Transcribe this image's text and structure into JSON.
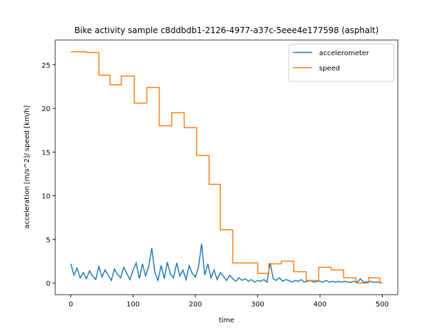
{
  "chart_data": {
    "type": "line",
    "title": "Bike activity sample c8ddbdb1-2126-4977-a37c-5eee4e177598 (asphalt)",
    "x_label": "time",
    "y_label": "acceleration [m/s^2]/ speed [km/h]",
    "xlim": [
      -25,
      525
    ],
    "ylim": [
      -1.33,
      27.83
    ],
    "xticks": [
      0,
      100,
      200,
      300,
      400,
      500
    ],
    "yticks": [
      0,
      5,
      10,
      15,
      20,
      25
    ],
    "legend": "upper right",
    "series": [
      {
        "name": "accelerometer",
        "color": "#1f77b4",
        "x": [
          0,
          5,
          10,
          15,
          20,
          25,
          30,
          35,
          40,
          45,
          50,
          55,
          60,
          65,
          70,
          75,
          80,
          85,
          90,
          95,
          100,
          105,
          110,
          115,
          120,
          125,
          130,
          135,
          140,
          145,
          150,
          155,
          160,
          165,
          170,
          175,
          180,
          185,
          190,
          195,
          200,
          205,
          210,
          215,
          220,
          225,
          230,
          235,
          240,
          245,
          250,
          255,
          260,
          265,
          270,
          275,
          280,
          285,
          290,
          295,
          300,
          305,
          310,
          315,
          320,
          325,
          330,
          335,
          340,
          345,
          350,
          355,
          360,
          365,
          370,
          375,
          380,
          385,
          390,
          395,
          400,
          405,
          410,
          415,
          420,
          425,
          430,
          435,
          440,
          445,
          450,
          455,
          460,
          465,
          470,
          475,
          480,
          485,
          490,
          495,
          500
        ],
        "values": [
          2.2,
          0.9,
          1.7,
          0.6,
          1.2,
          0.5,
          1.4,
          0.8,
          0.4,
          1.9,
          0.7,
          1.5,
          0.9,
          0.3,
          1.6,
          1.0,
          0.6,
          1.8,
          1.1,
          0.4,
          1.5,
          2.3,
          0.5,
          2.2,
          0.8,
          1.9,
          4.0,
          1.2,
          0.3,
          2.0,
          0.5,
          2.4,
          1.0,
          0.6,
          2.3,
          0.8,
          1.5,
          0.4,
          2.0,
          1.1,
          0.7,
          1.8,
          4.5,
          0.9,
          2.2,
          0.6,
          1.5,
          0.4,
          1.2,
          0.8,
          0.3,
          0.9,
          0.5,
          0.2,
          0.6,
          0.3,
          0.5,
          0.2,
          0.4,
          0.1,
          0.3,
          0.2,
          0.4,
          0.1,
          2.3,
          0.5,
          0.3,
          0.6,
          0.2,
          0.4,
          0.3,
          0.1,
          0.3,
          0.2,
          0.4,
          0.1,
          0.2,
          0.3,
          0.1,
          0.2,
          0.2,
          0.1,
          0.3,
          0.1,
          0.2,
          0.1,
          0.2,
          0.1,
          0.2,
          0.1,
          0.1,
          0.2,
          0.1,
          0.5,
          0.1,
          0.1,
          0.2,
          0.1,
          0.1,
          0.1,
          0.0
        ]
      },
      {
        "name": "speed",
        "color": "#ff7f0e",
        "x": [
          0,
          25,
          25,
          45,
          45,
          63,
          63,
          81,
          81,
          102,
          102,
          122,
          122,
          142,
          142,
          162,
          162,
          182,
          182,
          202,
          202,
          222,
          222,
          240,
          240,
          260,
          260,
          300,
          300,
          318,
          318,
          338,
          338,
          358,
          358,
          378,
          378,
          398,
          398,
          418,
          418,
          438,
          438,
          458,
          458,
          478,
          478,
          496,
          496,
          500
        ],
        "values": [
          26.5,
          26.5,
          26.4,
          26.4,
          23.8,
          23.8,
          22.7,
          22.7,
          23.7,
          23.7,
          20.6,
          20.6,
          22.4,
          22.4,
          18.0,
          18.0,
          19.5,
          19.5,
          17.8,
          17.8,
          14.6,
          14.6,
          11.3,
          11.3,
          6.1,
          6.1,
          2.3,
          2.3,
          1.1,
          1.1,
          2.2,
          2.2,
          2.5,
          2.5,
          1.3,
          1.3,
          0.3,
          0.3,
          1.8,
          1.8,
          1.5,
          1.5,
          0.6,
          0.6,
          0.0,
          0.0,
          0.6,
          0.6,
          0.0,
          0.0
        ]
      }
    ]
  }
}
